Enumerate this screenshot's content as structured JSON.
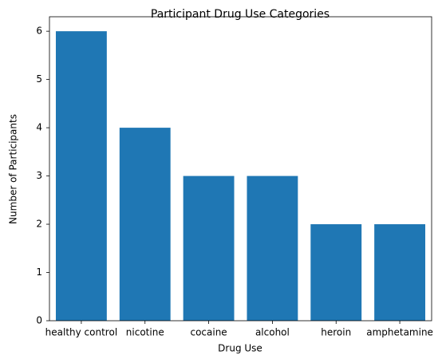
{
  "chart_data": {
    "type": "bar",
    "title": "Participant Drug Use Categories",
    "x_label": "Drug Use",
    "y_label": "Number of Participants",
    "categories": [
      "healthy control",
      "nicotine",
      "cocaine",
      "alcohol",
      "heroin",
      "amphetamine"
    ],
    "values": [
      6,
      4,
      3,
      3,
      2,
      2
    ],
    "color": "#1f77b4",
    "ylim": [
      0,
      6.3
    ],
    "yticks": [
      0,
      1,
      2,
      3,
      4,
      5,
      6
    ],
    "grid": false
  }
}
